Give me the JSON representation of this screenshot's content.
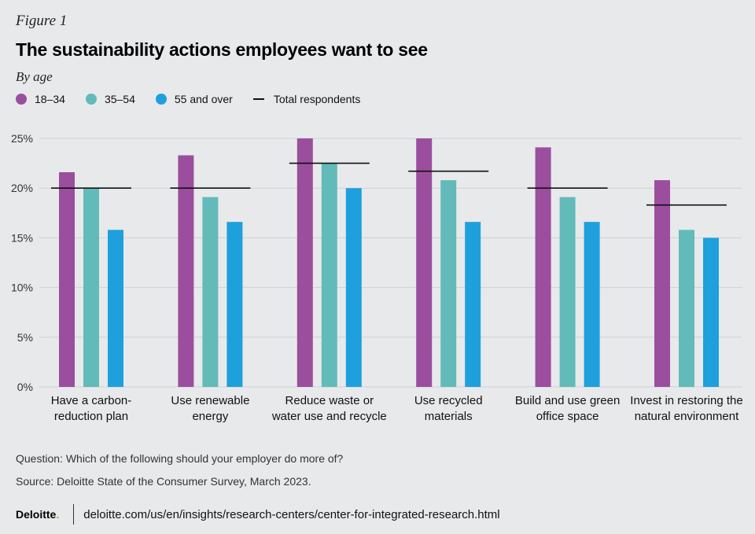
{
  "header": {
    "figure_label": "Figure 1",
    "title": "The sustainability actions employees want to see",
    "subtitle": "By age"
  },
  "colors": {
    "s1834": "#9b4e9e",
    "s3554": "#62bbb8",
    "s55": "#1ea0dc",
    "total": "#111111",
    "grid": "#cfd1d4"
  },
  "legend": {
    "s1834": "18–34",
    "s3554": "35–54",
    "s55": "55 and over",
    "total": "Total respondents"
  },
  "chart_data": {
    "type": "bar",
    "categories": [
      [
        "Have a carbon-",
        "reduction plan"
      ],
      [
        "Use renewable",
        "energy"
      ],
      [
        "Reduce waste or",
        "water use and recycle"
      ],
      [
        "Use recycled",
        "materials"
      ],
      [
        "Build and use green",
        "office space"
      ],
      [
        "Invest in restoring the",
        "natural environment"
      ]
    ],
    "series": [
      {
        "name": "18–34",
        "values": [
          21.6,
          23.3,
          25,
          25,
          24.1,
          20.8
        ]
      },
      {
        "name": "35–54",
        "values": [
          20,
          19.1,
          22.5,
          20.8,
          19.1,
          15.8
        ]
      },
      {
        "name": "55 and over",
        "values": [
          15.8,
          16.6,
          20,
          16.6,
          16.6,
          15
        ]
      }
    ],
    "total": {
      "name": "Total respondents",
      "values": [
        20,
        20,
        22.5,
        21.7,
        20,
        18.3
      ]
    },
    "ylim": [
      0,
      25
    ],
    "yticks": [
      0,
      5,
      10,
      15,
      20,
      25
    ],
    "ytick_labels": [
      "0%",
      "5%",
      "10%",
      "15%",
      "20%",
      "25%"
    ],
    "grid": true,
    "legend_position": "top-left"
  },
  "notes": {
    "question": "Question: Which of the following should your employer do more of?",
    "source": "Source: Deloitte State of the Consumer Survey, March 2023."
  },
  "footer": {
    "logo": "Deloitte",
    "logo_dot": ".",
    "url": "deloitte.com/us/en/insights/research-centers/center-for-integrated-research.html"
  }
}
